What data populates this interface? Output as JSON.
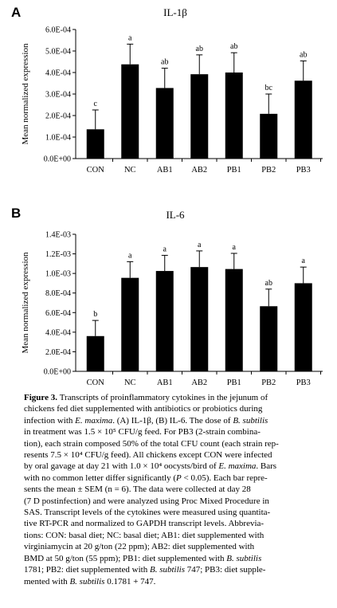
{
  "chart_data": [
    {
      "panel": "A",
      "type": "bar",
      "title": "IL-1β",
      "ylabel": "Mean normalized expression",
      "xlabel": "",
      "categories": [
        "CON",
        "NC",
        "AB1",
        "AB2",
        "PB1",
        "PB2",
        "PB3"
      ],
      "values": [
        0.000136,
        0.000438,
        0.000328,
        0.000392,
        0.0004,
        0.000208,
        0.000362
      ],
      "errors": [
        9e-05,
        9.4e-05,
        9.2e-05,
        9e-05,
        9.2e-05,
        9.2e-05,
        9.2e-05
      ],
      "letters": [
        "c",
        "a",
        "ab",
        "ab",
        "ab",
        "bc",
        "ab"
      ],
      "ylim": [
        0,
        0.0006
      ],
      "yticks": [
        "0.0E+00",
        "1.0E-04",
        "2.0E-04",
        "3.0E-04",
        "4.0E-04",
        "5.0E-04",
        "6.0E-04"
      ],
      "bar_color": "#000000",
      "grid": false
    },
    {
      "panel": "B",
      "type": "bar",
      "title": "IL-6",
      "ylabel": "Mean normalized expression",
      "xlabel": "",
      "categories": [
        "CON",
        "NC",
        "AB1",
        "AB2",
        "PB1",
        "PB2",
        "PB3"
      ],
      "values": [
        0.00036,
        0.000955,
        0.001025,
        0.001065,
        0.001045,
        0.000665,
        0.0009
      ],
      "errors": [
        0.00016,
        0.000165,
        0.00016,
        0.000165,
        0.00016,
        0.000175,
        0.000165
      ],
      "letters": [
        "b",
        "a",
        "a",
        "a",
        "a",
        "ab",
        "a"
      ],
      "ylim": [
        0,
        0.0014
      ],
      "yticks": [
        "0.0E+00",
        "2.0E-04",
        "4.0E-04",
        "6.0E-04",
        "8.0E-04",
        "1.0E-03",
        "1.2E-03",
        "1.4E-03"
      ],
      "bar_color": "#000000",
      "grid": false
    }
  ],
  "caption": {
    "label": "Figure 3.",
    "lines": [
      "Transcripts of proinflammatory cytokines in the jejunum of",
      "chickens fed diet supplemented with antibiotics or probiotics during",
      "infection with E. maxima. (A) IL-1β, (B) IL-6. The dose of B. subtilis",
      "in treatment was 1.5 × 10⁵ CFU/g feed. For PB3 (2-strain combina-",
      "tion), each strain composed 50% of the total CFU count (each strain rep-",
      "resents 7.5 × 10⁴ CFU/g feed). All chickens except CON were infected",
      "by oral gavage at day 21 with 1.0 × 10⁴ oocysts/bird of E. maxima. Bars",
      "with no common letter differ significantly (P < 0.05). Each bar repre-",
      "sents the mean ± SEM (n = 6). The data were collected at day 28",
      "(7 D postinfection) and were analyzed using Proc Mixed Procedure in",
      "SAS. Transcript levels of the cytokines were measured using quantita-",
      "tive RT-PCR and normalized to GAPDH transcript levels. Abbrevia-",
      "tions: CON: basal diet; NC: basal diet; AB1: diet supplemented with",
      "virginiamycin at 20 g/ton (22 ppm); AB2: diet supplemented with",
      "BMD at 50 g/ton (55 ppm); PB1: diet supplemented with B. subtilis",
      "1781; PB2: diet supplemented with B. subtilis 747; PB3: diet supple-",
      "mented with B. subtilis 0.1781 + 747."
    ]
  }
}
